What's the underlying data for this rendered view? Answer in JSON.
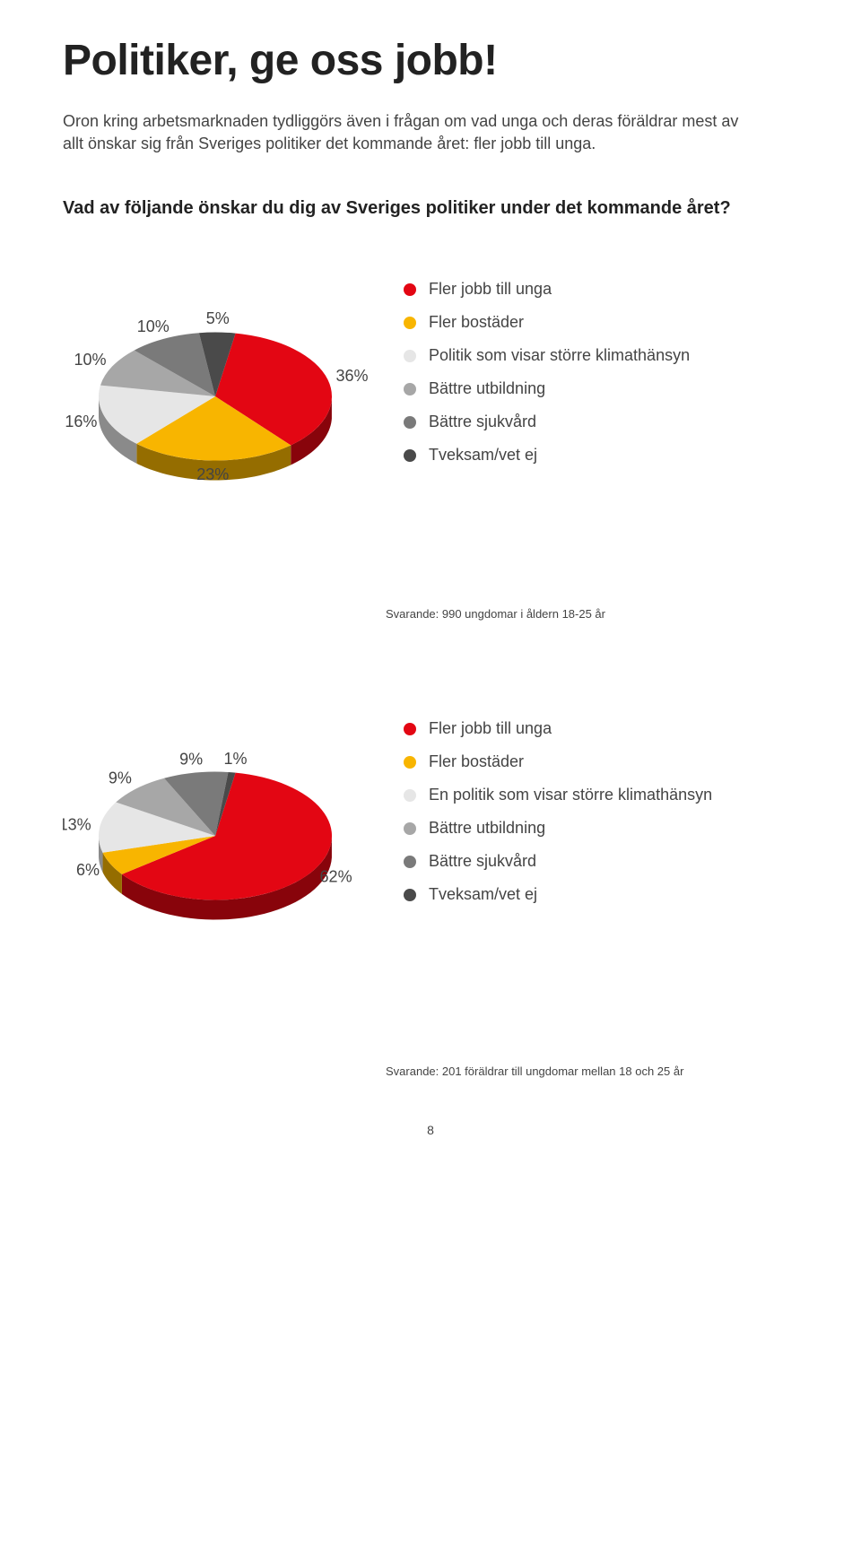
{
  "title": "Politiker, ge oss jobb!",
  "intro": "Oron kring arbetsmarknaden tydliggörs även i frågan om vad unga och deras föräldrar mest av allt önskar sig från Sveriges politiker det kommande året: fler jobb till unga.",
  "question": "Vad av följande önskar du dig av Sveriges politiker under det kommande året?",
  "chart1": {
    "type": "pie",
    "slices": [
      {
        "label": "Fler jobb till unga",
        "value": 36,
        "color": "#e30613"
      },
      {
        "label": "Fler bostäder",
        "value": 23,
        "color": "#f8b500"
      },
      {
        "label": "Politik som visar större klimathänsyn",
        "value": 16,
        "color": "#e6e6e6"
      },
      {
        "label": "Bättre utbildning",
        "value": 10,
        "color": "#a7a7a7"
      },
      {
        "label": "Bättre sjukvård",
        "value": 10,
        "color": "#7a7a7a"
      },
      {
        "label": "Tveksam/vet ej",
        "value": 5,
        "color": "#4a4a4a"
      }
    ],
    "side_color": "#a00000",
    "label_fontsize": 18,
    "footnote": "Svarande: 990 ungdomar i åldern 18-25 år"
  },
  "chart2": {
    "type": "pie",
    "slices": [
      {
        "label": "Fler jobb till unga",
        "value": 62,
        "color": "#e30613"
      },
      {
        "label": "Fler bostäder",
        "value": 6,
        "color": "#f8b500"
      },
      {
        "label": "En politik som visar större klimathänsyn",
        "value": 13,
        "color": "#e6e6e6"
      },
      {
        "label": "Bättre utbildning",
        "value": 9,
        "color": "#a7a7a7"
      },
      {
        "label": "Bättre sjukvård",
        "value": 9,
        "color": "#7a7a7a"
      },
      {
        "label": "Tveksam/vet ej",
        "value": 1,
        "color": "#4a4a4a"
      }
    ],
    "side_color": "#a00000",
    "label_fontsize": 18,
    "footnote": "Svarande: 201 föräldrar till ungdomar mellan 18 och 25 år"
  },
  "page_number": "8"
}
